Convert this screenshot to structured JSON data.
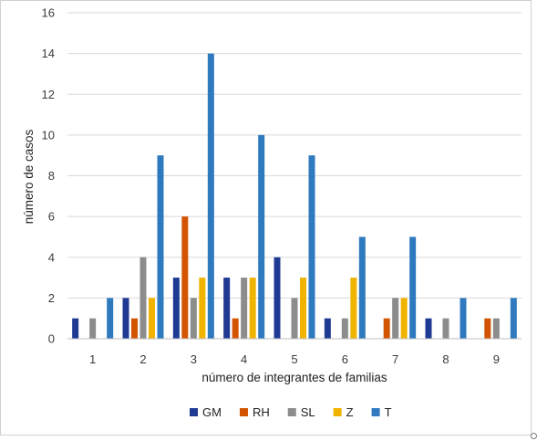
{
  "chart_data": {
    "type": "bar",
    "title": "",
    "xlabel": "número de integrantes de familias",
    "ylabel": "número de casos",
    "categories": [
      "1",
      "2",
      "3",
      "4",
      "5",
      "6",
      "7",
      "8",
      "9"
    ],
    "ylim": [
      0,
      16
    ],
    "yticks": [
      0,
      2,
      4,
      6,
      8,
      10,
      12,
      14,
      16
    ],
    "grid": true,
    "legend_position": "bottom",
    "series": [
      {
        "name": "GM",
        "color": "#1f3a93",
        "values": [
          1,
          2,
          3,
          3,
          4,
          1,
          0,
          1,
          0
        ]
      },
      {
        "name": "RH",
        "color": "#d35400",
        "values": [
          0,
          1,
          6,
          1,
          0,
          0,
          1,
          0,
          1
        ]
      },
      {
        "name": "SL",
        "color": "#8c8c8c",
        "values": [
          1,
          4,
          2,
          3,
          2,
          1,
          2,
          1,
          1
        ]
      },
      {
        "name": "Z",
        "color": "#f0b400",
        "values": [
          0,
          2,
          3,
          3,
          3,
          3,
          2,
          0,
          0
        ]
      },
      {
        "name": "T",
        "color": "#2f7abf",
        "values": [
          2,
          9,
          14,
          10,
          9,
          5,
          5,
          2,
          2
        ]
      }
    ]
  }
}
